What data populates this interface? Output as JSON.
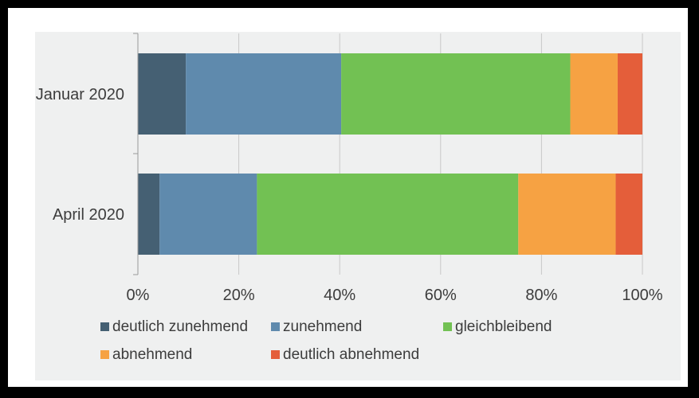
{
  "chart_data": {
    "type": "bar",
    "orientation": "horizontal",
    "stacked": true,
    "percent_scale": true,
    "categories": [
      "Januar 2020",
      "April 2020"
    ],
    "series": [
      {
        "name": "deutlich zunehmend",
        "color": "#456073",
        "values": [
          9.5,
          4.3
        ]
      },
      {
        "name": "zunehmend",
        "color": "#5f8aad",
        "values": [
          30.8,
          19.3
        ]
      },
      {
        "name": "gleichbleibend",
        "color": "#72c153",
        "values": [
          45.4,
          51.8
        ]
      },
      {
        "name": "abnehmend",
        "color": "#f6a243",
        "values": [
          9.4,
          19.3
        ]
      },
      {
        "name": "deutlich abnehmend",
        "color": "#e45e3a",
        "values": [
          4.9,
          5.3
        ]
      }
    ],
    "xlim": [
      0,
      100
    ],
    "xticks": [
      0,
      20,
      40,
      60,
      80,
      100
    ],
    "xtick_labels": [
      "0%",
      "20%",
      "40%",
      "60%",
      "80%",
      "100%"
    ],
    "grid": "vertical",
    "legend_position": "bottom",
    "title": "",
    "xlabel": "",
    "ylabel": ""
  }
}
